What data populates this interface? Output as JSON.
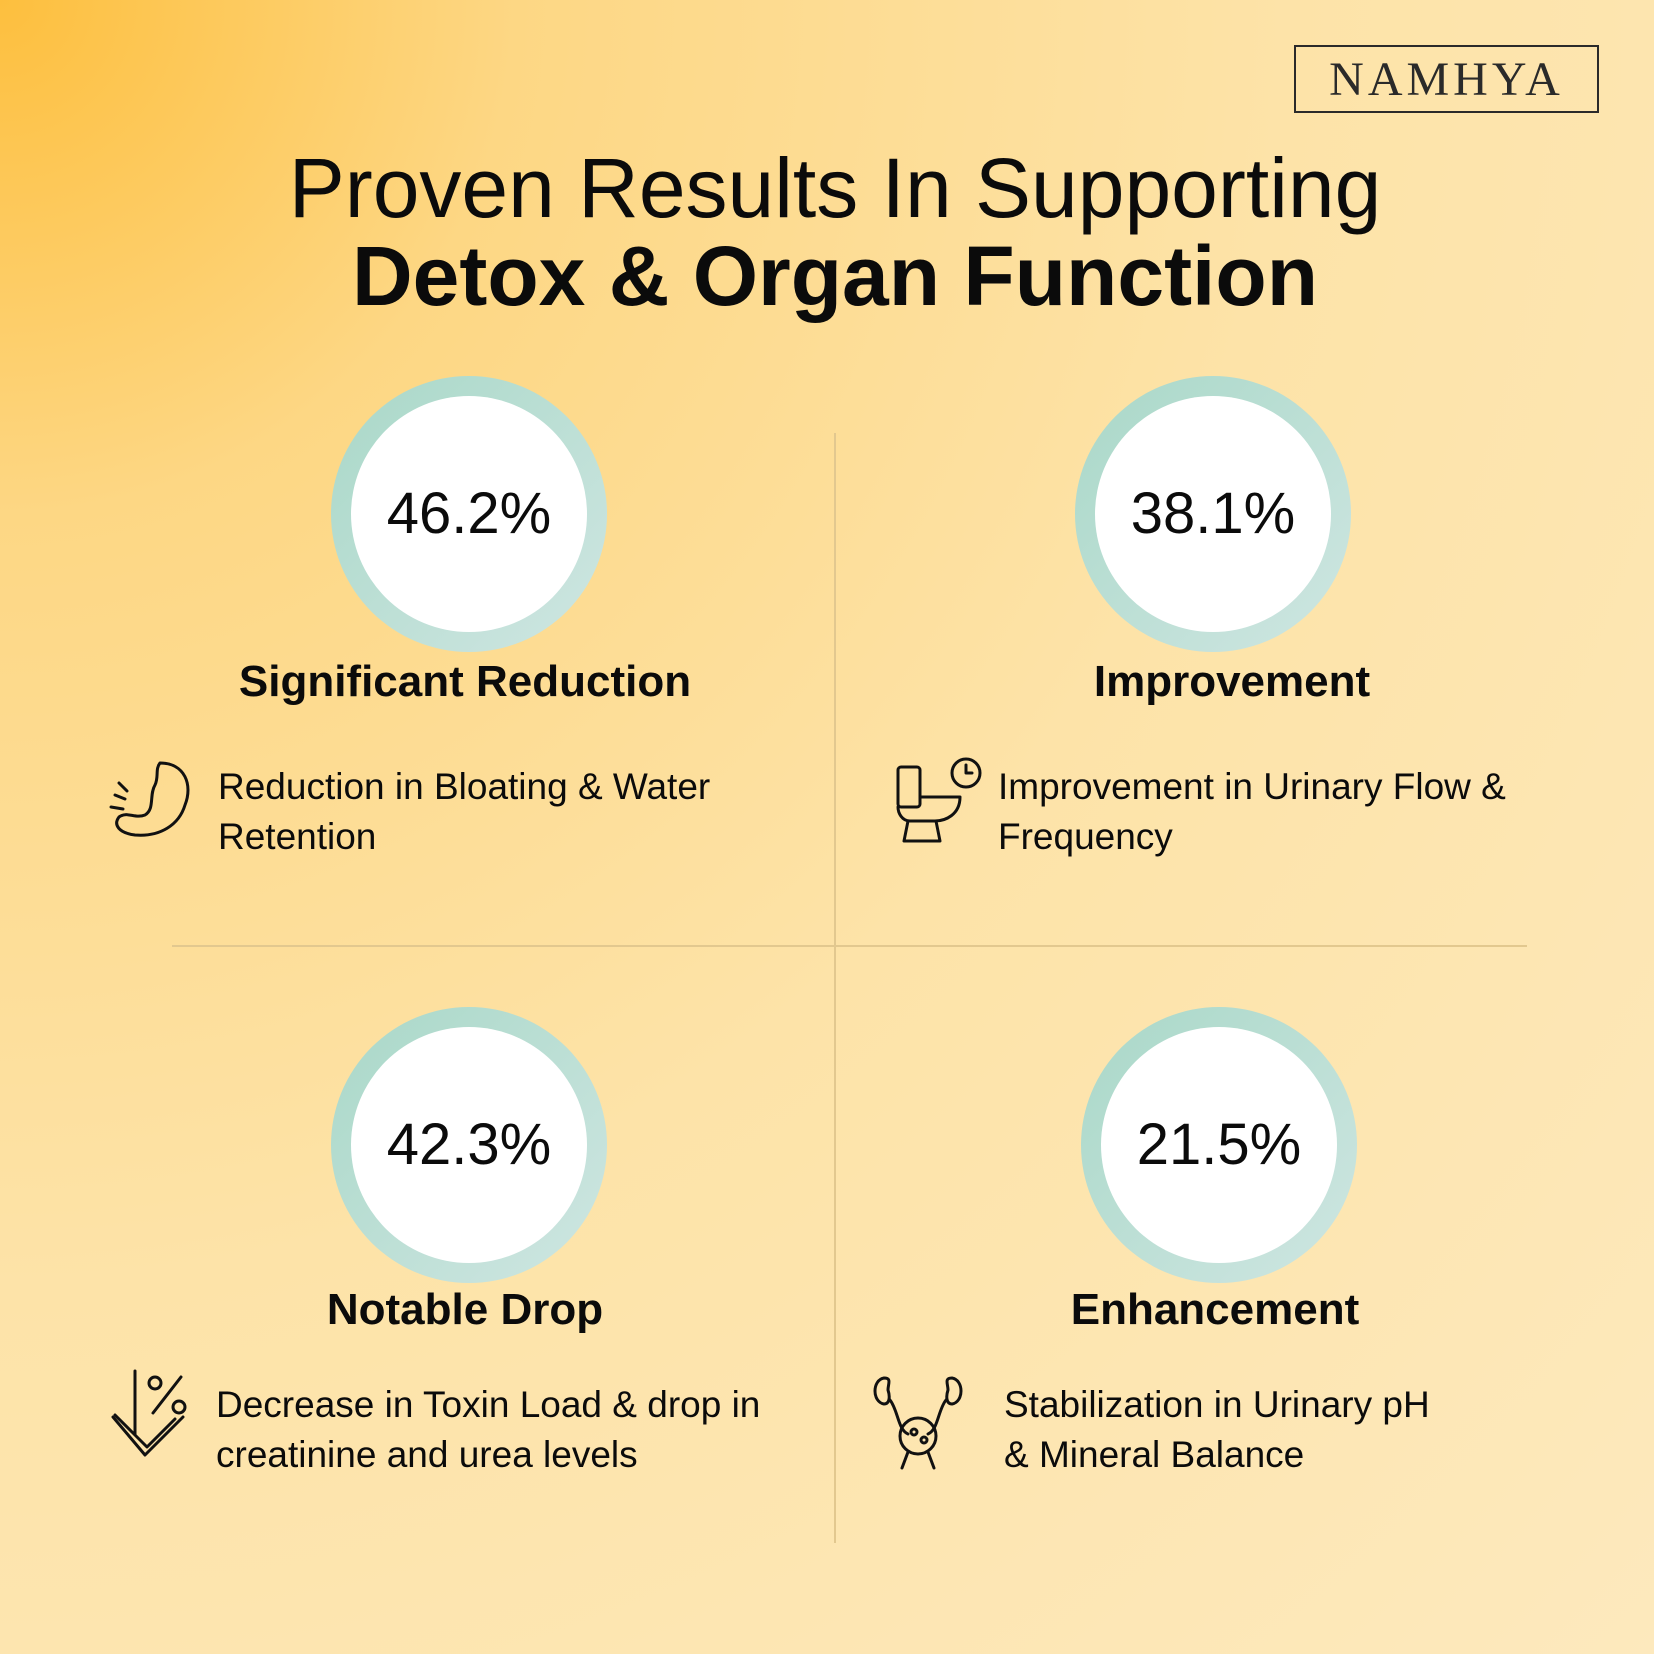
{
  "brand": "NAMHYA",
  "title": {
    "line1": "Proven Results In Supporting",
    "line2": "Detox & Organ Function"
  },
  "items": [
    {
      "value": "46.2%",
      "heading": "Significant Reduction",
      "description": [
        "Reduction in Bloating & Water",
        "Retention"
      ]
    },
    {
      "value": "38.1%",
      "heading": "Improvement",
      "description": [
        "Improvement in Urinary Flow &",
        "Frequency"
      ]
    },
    {
      "value": "42.3%",
      "heading": "Notable Drop",
      "description": [
        "Decrease in Toxin Load & drop in",
        "creatinine and urea levels"
      ]
    },
    {
      "value": "21.5%",
      "heading": "Enhancement",
      "description": [
        "Stabilization in Urinary pH",
        "& Mineral Balance"
      ]
    }
  ]
}
